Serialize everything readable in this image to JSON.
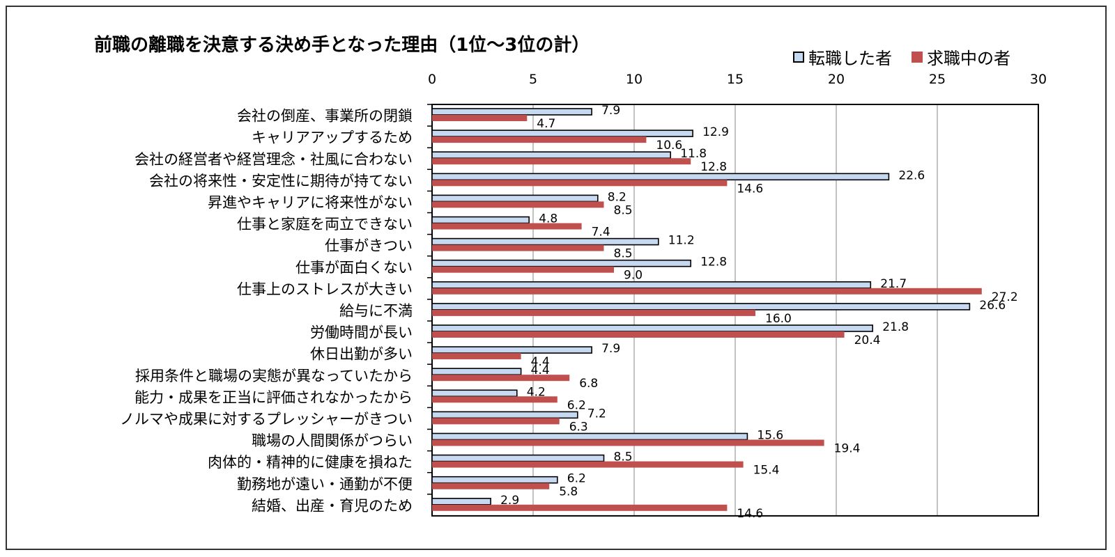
{
  "chart_data": {
    "type": "bar",
    "orientation": "horizontal",
    "title": "前職の離職を決意する決め手となった理由（1位～3位の計）",
    "xlim": [
      0,
      30
    ],
    "xticks": [
      0,
      5,
      10,
      15,
      20,
      25,
      30
    ],
    "grid": true,
    "legend_position": "top-right",
    "categories": [
      "会社の倒産、事業所の閉鎖",
      "キャリアアップするため",
      "会社の経営者や経営理念・社風に合わない",
      "会社の将来性・安定性に期待が持てない",
      "昇進やキャリアに将来性がない",
      "仕事と家庭を両立できない",
      "仕事がきつい",
      "仕事が面白くない",
      "仕事上のストレスが大きい",
      "給与に不満",
      "労働時間が長い",
      "休日出勤が多い",
      "採用条件と職場の実態が異なっていたから",
      "能力・成果を正当に評価されなかったから",
      "ノルマや成果に対するプレッシャーがきつい",
      "職場の人間関係がつらい",
      "肉体的・精神的に健康を損ねた",
      "勤務地が遠い・通勤が不便",
      "結婚、出産・育児のため"
    ],
    "series": [
      {
        "name": "転職した者",
        "color": "#c6d9f1",
        "values": [
          7.9,
          12.9,
          11.8,
          22.6,
          8.2,
          4.8,
          11.2,
          12.8,
          21.7,
          26.6,
          21.8,
          7.9,
          4.4,
          4.2,
          7.2,
          15.6,
          8.5,
          6.2,
          2.9
        ],
        "labels": [
          "7.9",
          "12.9",
          "11.8",
          "22.6",
          "8.2",
          "4.8",
          "11.2",
          "12.8",
          "21.7",
          "26.6",
          "21.8",
          "7.9",
          "4.4",
          "4.2",
          "7.2",
          "15.6",
          "8.5",
          "6.2",
          "2.9"
        ]
      },
      {
        "name": "求職中の者",
        "color": "#c0504d",
        "values": [
          4.7,
          10.6,
          12.8,
          14.6,
          8.5,
          7.4,
          8.5,
          9.0,
          27.2,
          16.0,
          20.4,
          4.4,
          6.8,
          6.2,
          6.3,
          19.4,
          15.4,
          5.8,
          14.6
        ],
        "labels": [
          "4.7",
          "10.6",
          "12.8",
          "14.6",
          "8.5",
          "7.4",
          "8.5",
          "9.0",
          "27.2",
          "16.0",
          "20.4",
          "4.4",
          "6.8",
          "6.2",
          "6.3",
          "19.4",
          "15.4",
          "5.8",
          "14.6"
        ]
      }
    ]
  }
}
